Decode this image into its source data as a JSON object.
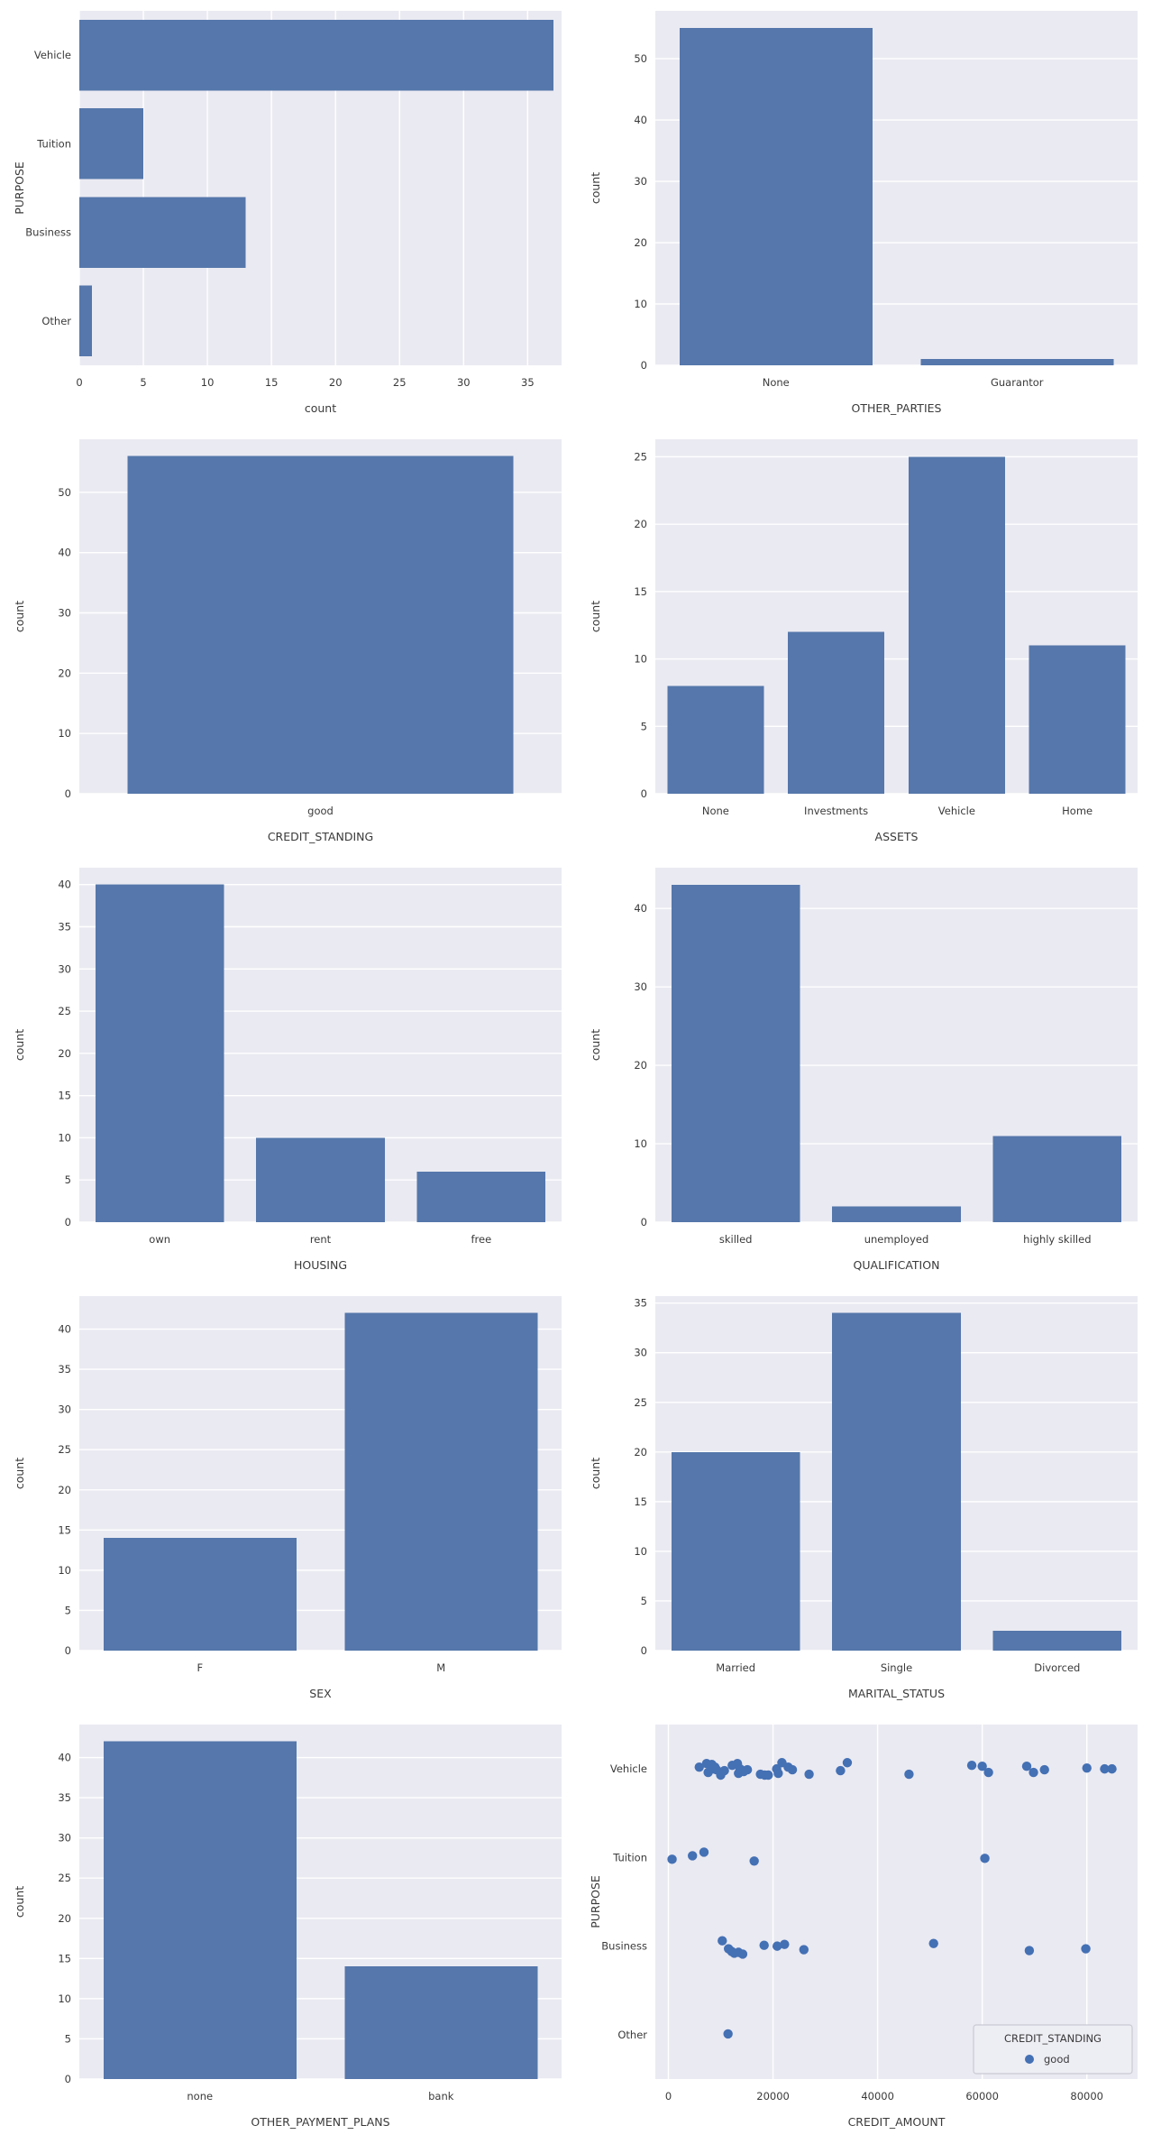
{
  "figure": {
    "background": "#ffffff",
    "plot_background": "#eaeaf2",
    "grid_color": "#ffffff",
    "bar_color": "#5577ab",
    "dot_color": "#4470b4",
    "tick_text_color": "#3a3a3a",
    "label_text_color": "#2b2b2b"
  },
  "chart_data": [
    {
      "type": "barh",
      "title": "",
      "ylabel": "PURPOSE",
      "xlabel": "count",
      "categories": [
        "Vehicle",
        "Tuition",
        "Business",
        "Other"
      ],
      "values": [
        37,
        5,
        13,
        1
      ],
      "xticks": [
        0,
        5,
        10,
        15,
        20,
        25,
        30,
        35
      ],
      "xlim": [
        0,
        37.65
      ],
      "grid": "vertical"
    },
    {
      "type": "bar",
      "title": "",
      "ylabel": "count",
      "xlabel": "OTHER_PARTIES",
      "categories": [
        "None",
        "Guarantor"
      ],
      "values": [
        55,
        1
      ],
      "yticks": [
        0,
        10,
        20,
        30,
        40,
        50
      ],
      "ylim": [
        0,
        57.8
      ],
      "grid": "horizontal"
    },
    {
      "type": "bar",
      "title": "",
      "ylabel": "count",
      "xlabel": "CREDIT_STANDING",
      "categories": [
        "good"
      ],
      "values": [
        56
      ],
      "yticks": [
        0,
        10,
        20,
        30,
        40,
        50
      ],
      "ylim": [
        0,
        58.8
      ],
      "grid": "horizontal"
    },
    {
      "type": "bar",
      "title": "",
      "ylabel": "count",
      "xlabel": "ASSETS",
      "categories": [
        "None",
        "Investments",
        "Vehicle",
        "Home"
      ],
      "values": [
        8,
        12,
        25,
        11
      ],
      "yticks": [
        0,
        5,
        10,
        15,
        20,
        25
      ],
      "ylim": [
        0,
        26.3
      ],
      "grid": "horizontal"
    },
    {
      "type": "bar",
      "title": "",
      "ylabel": "count",
      "xlabel": "HOUSING",
      "categories": [
        "own",
        "rent",
        "free"
      ],
      "values": [
        40,
        10,
        6
      ],
      "yticks": [
        0,
        5,
        10,
        15,
        20,
        25,
        30,
        35,
        40
      ],
      "ylim": [
        0,
        42.0
      ],
      "grid": "horizontal"
    },
    {
      "type": "bar",
      "title": "",
      "ylabel": "count",
      "xlabel": "QUALIFICATION",
      "categories": [
        "skilled",
        "unemployed",
        "highly skilled"
      ],
      "values": [
        43,
        2,
        11
      ],
      "yticks": [
        0,
        10,
        20,
        30,
        40
      ],
      "ylim": [
        0,
        45.2
      ],
      "grid": "horizontal"
    },
    {
      "type": "bar",
      "title": "",
      "ylabel": "count",
      "xlabel": "SEX",
      "categories": [
        "F",
        "M"
      ],
      "values": [
        14,
        42
      ],
      "yticks": [
        0,
        5,
        10,
        15,
        20,
        25,
        30,
        35,
        40
      ],
      "ylim": [
        0,
        44.1
      ],
      "grid": "horizontal"
    },
    {
      "type": "bar",
      "title": "",
      "ylabel": "count",
      "xlabel": "MARITAL_STATUS",
      "categories": [
        "Married",
        "Single",
        "Divorced"
      ],
      "values": [
        20,
        34,
        2
      ],
      "yticks": [
        0,
        5,
        10,
        15,
        20,
        25,
        30,
        35
      ],
      "ylim": [
        0,
        35.7
      ],
      "grid": "horizontal"
    },
    {
      "type": "bar",
      "title": "",
      "ylabel": "count",
      "xlabel": "OTHER_PAYMENT_PLANS",
      "categories": [
        "none",
        "bank"
      ],
      "values": [
        42,
        14
      ],
      "yticks": [
        0,
        5,
        10,
        15,
        20,
        25,
        30,
        35,
        40
      ],
      "ylim": [
        0,
        44.1
      ],
      "grid": "horizontal"
    },
    {
      "type": "strip",
      "title": "",
      "ylabel": "PURPOSE",
      "xlabel": "CREDIT_AMOUNT",
      "categories": [
        "Vehicle",
        "Tuition",
        "Business",
        "Other"
      ],
      "xticks": [
        0,
        20000,
        40000,
        60000,
        80000
      ],
      "xlim": [
        -2500,
        89700
      ],
      "grid": "vertical",
      "legend": {
        "title": "CREDIT_STANDING",
        "entries": [
          {
            "label": "good"
          }
        ]
      },
      "series": [
        {
          "name": "good",
          "points": [
            [
              0,
              5900,
              -0.02
            ],
            [
              0,
              7300,
              -0.06
            ],
            [
              0,
              7600,
              0.04
            ],
            [
              0,
              8300,
              -0.05
            ],
            [
              0,
              8600,
              0.0
            ],
            [
              0,
              8900,
              -0.02
            ],
            [
              0,
              9200,
              0.01
            ],
            [
              0,
              10000,
              0.07
            ],
            [
              0,
              10700,
              0.02
            ],
            [
              0,
              12200,
              -0.04
            ],
            [
              0,
              13200,
              -0.06
            ],
            [
              0,
              13400,
              0.05
            ],
            [
              0,
              13700,
              0.0
            ],
            [
              0,
              13900,
              0.01
            ],
            [
              0,
              14400,
              0.03
            ],
            [
              0,
              15100,
              0.01
            ],
            [
              0,
              17600,
              0.06
            ],
            [
              0,
              18400,
              0.07
            ],
            [
              0,
              19100,
              0.07
            ],
            [
              0,
              20700,
              0.0
            ],
            [
              0,
              21000,
              0.05
            ],
            [
              0,
              21700,
              -0.07
            ],
            [
              0,
              22900,
              -0.02
            ],
            [
              0,
              23700,
              0.01
            ],
            [
              0,
              26900,
              0.06
            ],
            [
              0,
              32900,
              0.02
            ],
            [
              0,
              34200,
              -0.07
            ],
            [
              0,
              46000,
              0.06
            ],
            [
              0,
              58000,
              -0.04
            ],
            [
              0,
              60000,
              -0.03
            ],
            [
              0,
              61200,
              0.04
            ],
            [
              0,
              68500,
              -0.03
            ],
            [
              0,
              69800,
              0.04
            ],
            [
              0,
              71900,
              0.01
            ],
            [
              0,
              80000,
              -0.01
            ],
            [
              0,
              83400,
              0.0
            ],
            [
              0,
              84800,
              0.0
            ],
            [
              1,
              700,
              0.02
            ],
            [
              1,
              4600,
              -0.02
            ],
            [
              1,
              6800,
              -0.06
            ],
            [
              1,
              16400,
              0.04
            ],
            [
              1,
              60500,
              0.01
            ],
            [
              2,
              10300,
              -0.06
            ],
            [
              2,
              11500,
              0.03
            ],
            [
              2,
              12100,
              0.06
            ],
            [
              2,
              12600,
              0.08
            ],
            [
              2,
              13400,
              0.07
            ],
            [
              2,
              14200,
              0.09
            ],
            [
              2,
              18300,
              -0.01
            ],
            [
              2,
              20800,
              0.0
            ],
            [
              2,
              22200,
              -0.02
            ],
            [
              2,
              25900,
              0.04
            ],
            [
              2,
              50700,
              -0.03
            ],
            [
              2,
              69000,
              0.05
            ],
            [
              2,
              79800,
              0.03
            ],
            [
              3,
              11400,
              -0.01
            ]
          ]
        }
      ]
    }
  ]
}
